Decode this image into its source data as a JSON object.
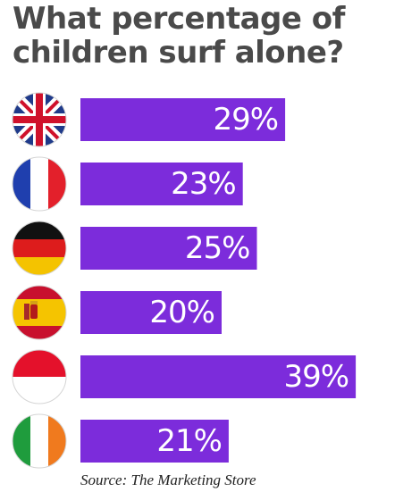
{
  "title_lines": [
    "What percentage of",
    "children surf alone?"
  ],
  "source": "Source: The Marketing Store",
  "colors": {
    "bar": "#7c2cdb",
    "value_text": "#ffffff",
    "title": "#4a4a4a"
  },
  "chart_data": {
    "type": "bar",
    "orientation": "horizontal",
    "title": "What percentage of children surf alone?",
    "categories": [
      "United Kingdom",
      "France",
      "Germany",
      "Spain",
      "Indonesia",
      "Ireland"
    ],
    "category_icons": [
      "uk-flag-icon",
      "france-flag-icon",
      "germany-flag-icon",
      "spain-flag-icon",
      "indonesia-flag-icon",
      "ireland-flag-icon"
    ],
    "values": [
      29,
      23,
      25,
      20,
      39,
      21
    ],
    "value_labels": [
      "29%",
      "23%",
      "25%",
      "20%",
      "39%",
      "21%"
    ],
    "unit": "%",
    "grid": false,
    "legend": "none"
  }
}
